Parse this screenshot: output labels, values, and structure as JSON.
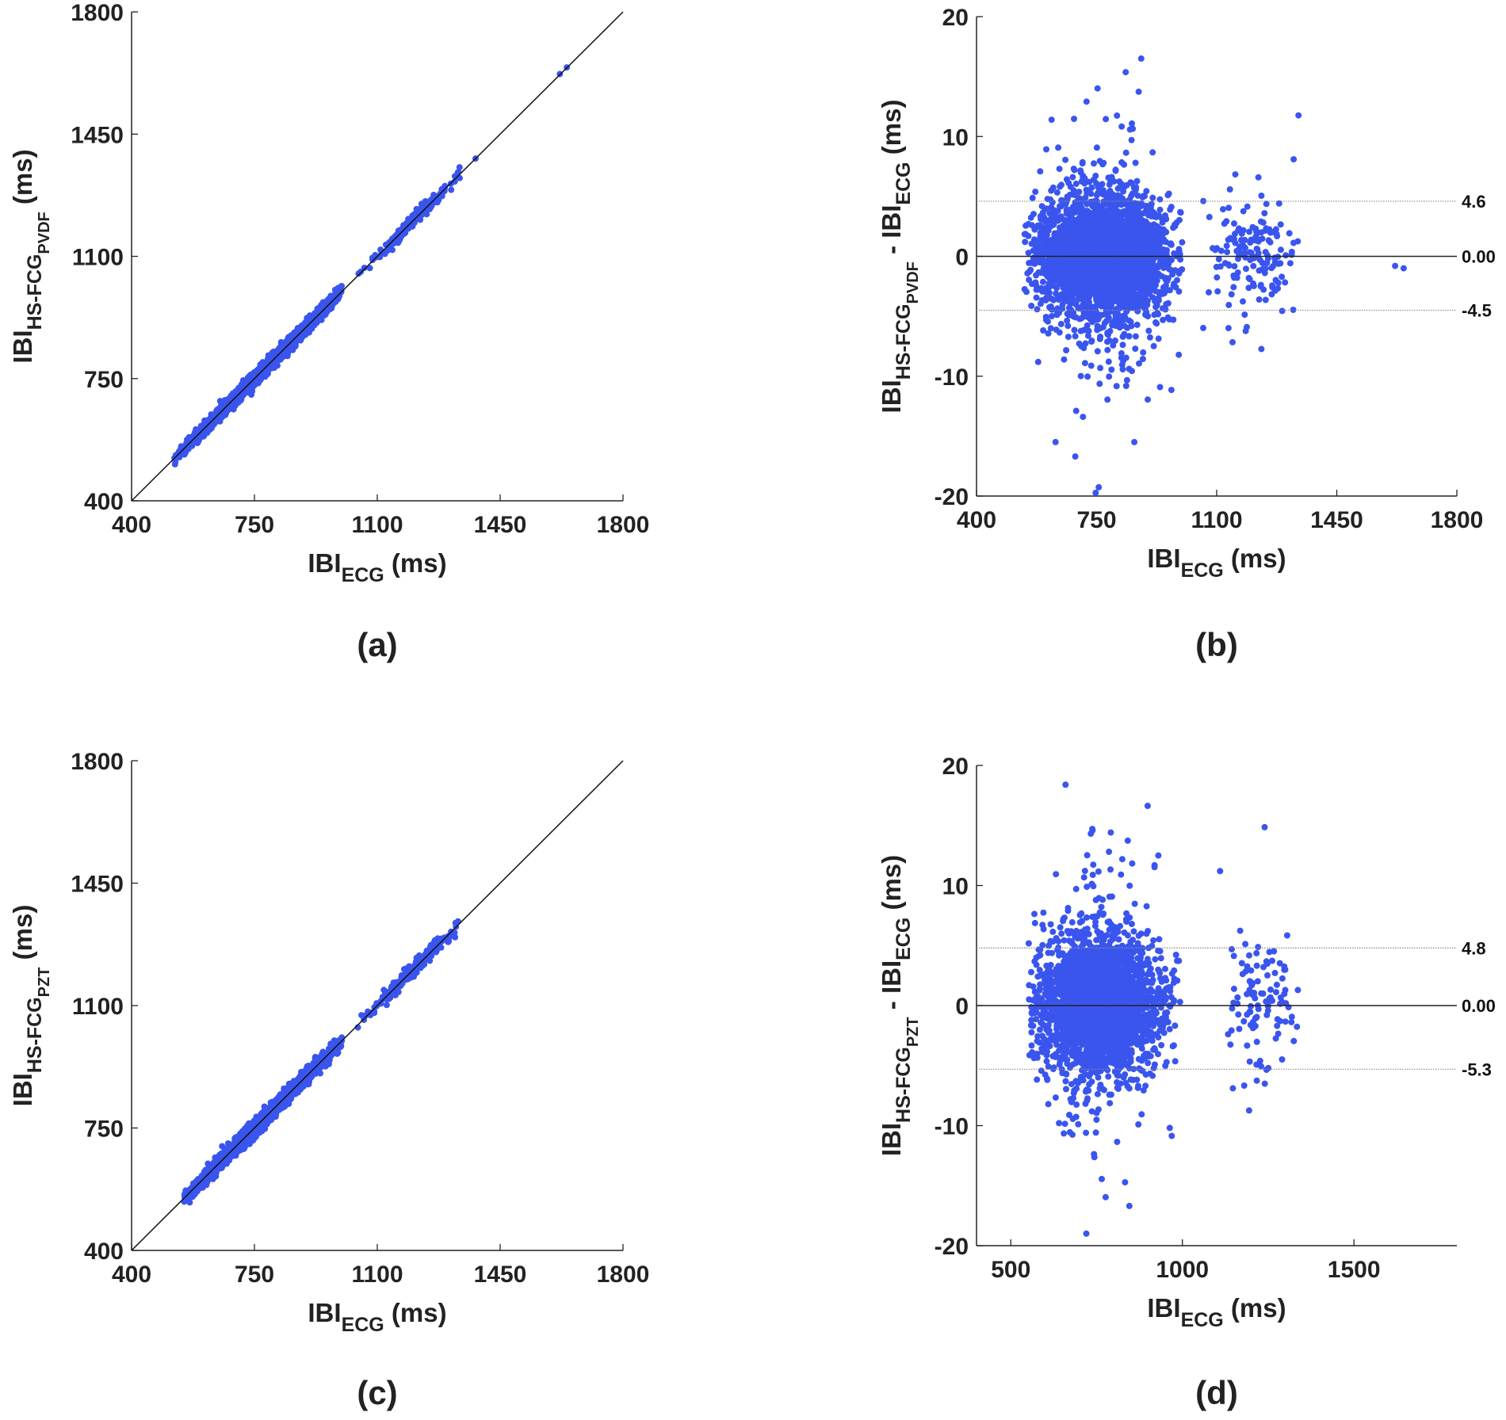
{
  "chart_data": [
    {
      "id": "a",
      "type": "scatter",
      "panel_label": "(a)",
      "xlabel": {
        "main": "IBI",
        "sub": "ECG",
        "unit": " (ms)"
      },
      "ylabel": {
        "main": "IBI",
        "sub": "HS-FCG",
        "subsub": "PVDF",
        "unit": " (ms)"
      },
      "xlim": [
        400,
        1800
      ],
      "ylim": [
        400,
        1800
      ],
      "xticks": [
        "400",
        "750",
        "1100",
        "1450",
        "1800"
      ],
      "yticks": [
        "400",
        "750",
        "1100",
        "1450",
        "1800"
      ],
      "identity_line": true,
      "series_color": "#3a55ee",
      "points_summary": {
        "mode": "identity",
        "clusters": [
          {
            "x_mean": 780,
            "x_sd": 110,
            "n": 2600,
            "x_min": 520,
            "x_max": 1000
          },
          {
            "x_mean": 1200,
            "x_sd": 70,
            "n": 200,
            "x_min": 1040,
            "x_max": 1340
          }
        ],
        "noise_sd": 2.3,
        "outliers": [
          [
            1380,
            1380
          ],
          [
            1620,
            1622
          ],
          [
            1640,
            1641
          ],
          [
            725,
            737
          ]
        ]
      }
    },
    {
      "id": "b",
      "type": "scatter",
      "panel_label": "(b)",
      "xlabel": {
        "main": "IBI",
        "sub": "ECG",
        "unit": " (ms)"
      },
      "ylabel": {
        "main": "IBI",
        "sub": "HS-FCG",
        "subsub": "PVDF",
        "minus": " - IBI",
        "sub2": "ECG",
        "unit": " (ms)"
      },
      "xlim": [
        400,
        1800
      ],
      "ylim": [
        -20,
        20
      ],
      "xticks": [
        "400",
        "750",
        "1100",
        "1450",
        "1800"
      ],
      "yticks": [
        "-20",
        "-10",
        "0",
        "10",
        "20"
      ],
      "hlines": [
        {
          "value": 4.6,
          "label": "4.6",
          "style": "dotted"
        },
        {
          "value": 0,
          "label": "0.00",
          "style": "solid"
        },
        {
          "value": -4.5,
          "label": "-4.5",
          "style": "dotted"
        }
      ],
      "series_color": "#3a55ee",
      "points_summary": {
        "mode": "diff",
        "clusters": [
          {
            "x_mean": 770,
            "x_sd": 95,
            "n": 3200,
            "x_min": 540,
            "x_max": 1000,
            "y_sd": 2.4
          },
          {
            "x_mean": 1210,
            "x_sd": 65,
            "n": 160,
            "x_min": 1040,
            "x_max": 1340,
            "y_sd": 2.2
          }
        ],
        "outliers": [
          [
            1620,
            -0.8
          ],
          [
            1645,
            -1.0
          ],
          [
            880,
            16.5
          ],
          [
            860,
            -15.5
          ]
        ]
      }
    },
    {
      "id": "c",
      "type": "scatter",
      "panel_label": "(c)",
      "xlabel": {
        "main": "IBI",
        "sub": "ECG",
        "unit": " (ms)"
      },
      "ylabel": {
        "main": "IBI",
        "sub": "HS-FCG",
        "subsub": "PZT",
        "unit": " (ms)"
      },
      "xlim": [
        400,
        1800
      ],
      "ylim": [
        400,
        1800
      ],
      "xticks": [
        "400",
        "750",
        "1100",
        "1450",
        "1800"
      ],
      "yticks": [
        "400",
        "750",
        "1100",
        "1450",
        "1800"
      ],
      "identity_line": true,
      "series_color": "#3a55ee",
      "points_summary": {
        "mode": "identity",
        "clusters": [
          {
            "x_mean": 780,
            "x_sd": 105,
            "n": 2600,
            "x_min": 550,
            "x_max": 1000
          },
          {
            "x_mean": 1210,
            "x_sd": 65,
            "n": 200,
            "x_min": 1040,
            "x_max": 1340
          }
        ],
        "noise_sd": 2.6,
        "outliers": []
      }
    },
    {
      "id": "d",
      "type": "scatter",
      "panel_label": "(d)",
      "xlabel": {
        "main": "IBI",
        "sub": "ECG",
        "unit": " (ms)"
      },
      "ylabel": {
        "main": "IBI",
        "sub": "HS-FCG",
        "subsub": "PZT",
        "minus": " - IBI",
        "sub2": "ECG",
        "unit": " (ms)"
      },
      "xlim": [
        400,
        1800
      ],
      "ylim": [
        -20,
        20
      ],
      "xtick_values": [
        500,
        1000,
        1500
      ],
      "xticks": [
        "500",
        "1000",
        "1500"
      ],
      "yticks": [
        "-20",
        "-10",
        "0",
        "10",
        "20"
      ],
      "hlines": [
        {
          "value": 4.8,
          "label": "4.8",
          "style": "dotted"
        },
        {
          "value": 0,
          "label": "0.00",
          "style": "solid"
        },
        {
          "value": -5.3,
          "label": "-5.3",
          "style": "dotted"
        }
      ],
      "series_color": "#3a55ee",
      "points_summary": {
        "mode": "diff",
        "clusters": [
          {
            "x_mean": 760,
            "x_sd": 85,
            "n": 3200,
            "x_min": 550,
            "x_max": 1000,
            "y_sd": 2.7
          },
          {
            "x_mean": 1230,
            "x_sd": 55,
            "n": 110,
            "x_min": 1130,
            "x_max": 1340,
            "y_sd": 2.8
          }
        ],
        "outliers": [
          [
            720,
            -19
          ],
          [
            1110,
            11.2
          ],
          [
            930,
            12.5
          ]
        ]
      }
    }
  ]
}
